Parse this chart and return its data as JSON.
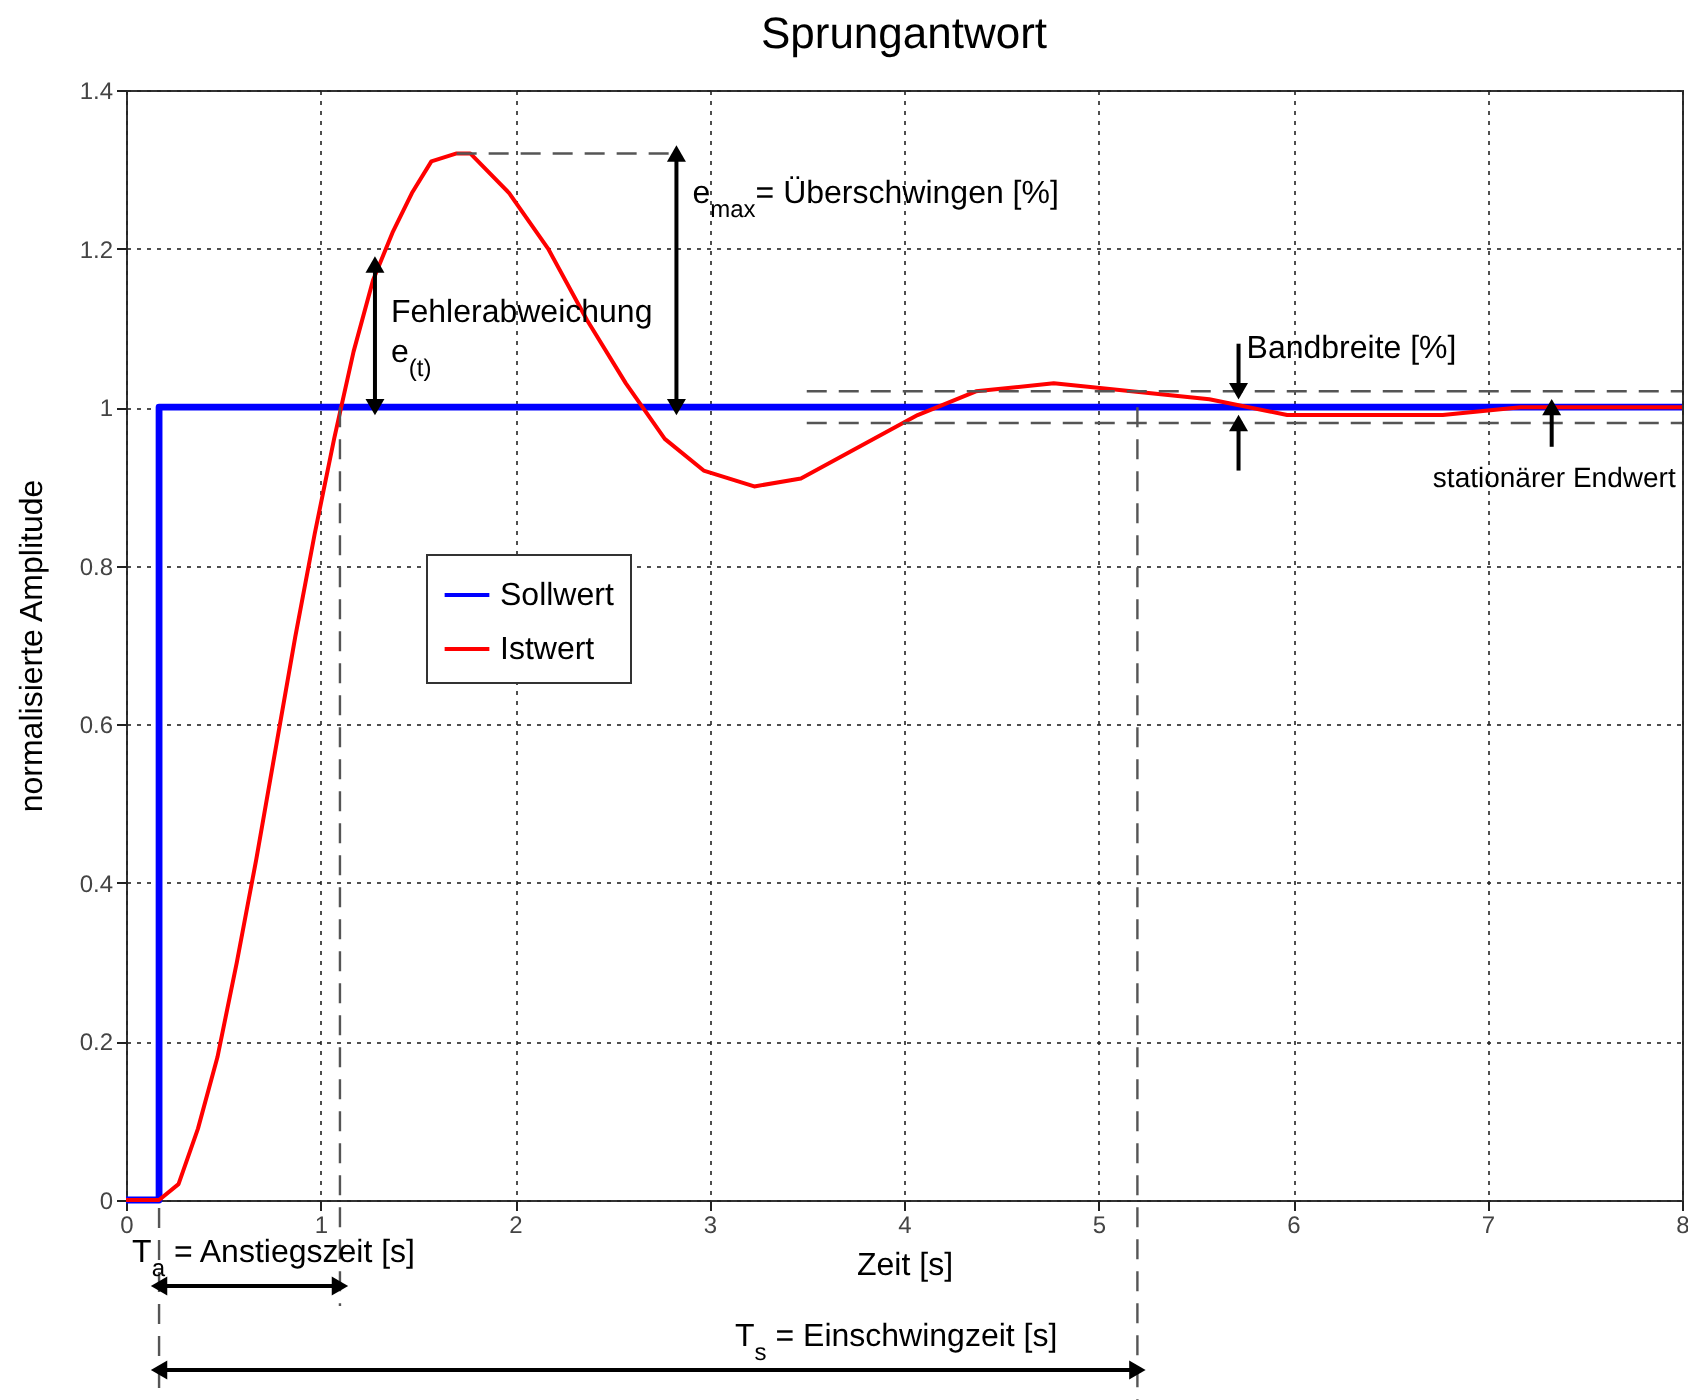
{
  "chart_data": {
    "type": "line",
    "title": "Sprungantwort",
    "xlabel": "Zeit [s]",
    "ylabel": "normalisierte Amplitude",
    "xlim": [
      0,
      8
    ],
    "xticks": [
      0,
      1,
      2,
      3,
      4,
      5,
      6,
      7,
      8
    ],
    "ylim": [
      0,
      1.4
    ],
    "yticks": [
      0,
      0.2,
      0.4,
      0.6,
      0.8,
      1,
      1.2,
      1.4
    ],
    "grid": true,
    "legend": "left",
    "line_style": "solid",
    "series": [
      {
        "name": "Sollwert",
        "color": "#0000ff",
        "x": [
          0,
          0.17,
          0.17,
          8
        ],
        "values": [
          0,
          0,
          1,
          1
        ]
      },
      {
        "name": "Istwert",
        "color": "#ff0000",
        "x": [
          0,
          0.17,
          0.27,
          0.37,
          0.47,
          0.57,
          0.67,
          0.77,
          0.87,
          0.97,
          1.07,
          1.17,
          1.27,
          1.37,
          1.47,
          1.57,
          1.7,
          1.77,
          1.97,
          2.17,
          2.37,
          2.57,
          2.77,
          2.97,
          3.23,
          3.47,
          3.77,
          4.07,
          4.37,
          4.77,
          5.17,
          5.57,
          5.97,
          6.37,
          6.77,
          7.17,
          7.57,
          8
        ],
        "values": [
          0,
          0,
          0.02,
          0.09,
          0.18,
          0.3,
          0.43,
          0.57,
          0.71,
          0.84,
          0.96,
          1.07,
          1.16,
          1.22,
          1.27,
          1.31,
          1.32,
          1.32,
          1.27,
          1.2,
          1.11,
          1.03,
          0.96,
          0.92,
          0.9,
          0.91,
          0.95,
          0.99,
          1.02,
          1.03,
          1.02,
          1.01,
          0.99,
          0.99,
          0.99,
          1,
          1,
          1
        ]
      },
      {
        "color": "#555555",
        "line_style": "dashed",
        "x": [
          1.7,
          2.83
        ],
        "values": [
          1.32,
          1.32
        ]
      },
      {
        "color": "#555555",
        "line_style": "dashed",
        "x": [
          3.5,
          8
        ],
        "values": [
          1.02,
          1.02
        ]
      },
      {
        "color": "#555555",
        "line_style": "dashed",
        "x": [
          3.5,
          8
        ],
        "values": [
          0.98,
          0.98
        ]
      }
    ],
    "ref_lines": [
      {
        "axis": "x",
        "value": 1.1,
        "label": "T$_{a}$ = Anstiegszeit [s]",
        "line_style": "dashed",
        "color": "#555555"
      },
      {
        "axis": "x",
        "value": 5.2,
        "label": "T$_{s}$ = Einschwingzeit [s]",
        "line_style": "dashed",
        "color": "#555555"
      }
    ],
    "annotations": [
      {
        "text": "Fehlerabweichung\n e$_{(t)}$",
        "x": 1.28,
        "y": 1.18
      },
      {
        "text": "e$_{max}$= Überschwingen [%]",
        "x": 2.83,
        "y": 1.32
      },
      {
        "text": "Bandbreite [%]",
        "x": 5.72,
        "y": 1.02
      },
      {
        "text": "stationärer Endwert",
        "x": 7.33,
        "y": 1
      }
    ]
  }
}
